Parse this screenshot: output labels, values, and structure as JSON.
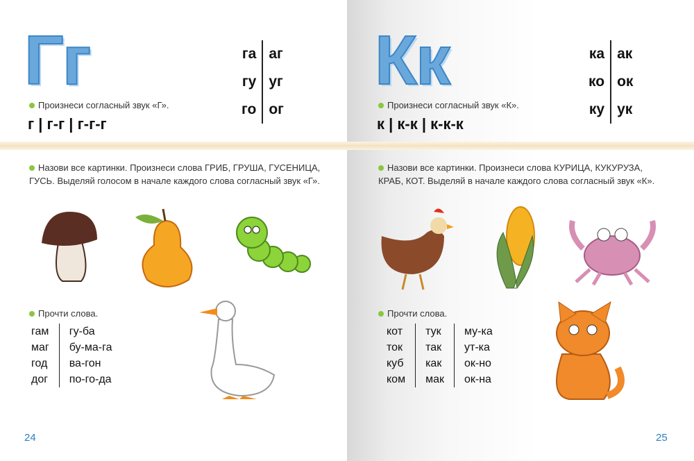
{
  "left": {
    "letter": "Гг",
    "syllables": [
      [
        "га",
        "аг"
      ],
      [
        "гу",
        "уг"
      ],
      [
        "го",
        "ог"
      ]
    ],
    "instruction_sound": "Произнеси согласный звук «Г».",
    "sound_pattern": "г | г-г | г-г-г",
    "instruction_name": "Назови все картинки. Произнеси слова ГРИБ, ГРУША, ГУСЕНИЦА, ГУСЬ. Выделяй голосом в начале каждого слова согласный звук «Г».",
    "instruction_read": "Прочти слова.",
    "words": [
      [
        "гам",
        "гу-ба"
      ],
      [
        "маг",
        "бу-ма-га"
      ],
      [
        "год",
        "ва-гон"
      ],
      [
        "дог",
        "по-го-да"
      ]
    ],
    "pictures": [
      "mushroom",
      "pear",
      "caterpillar",
      "goose"
    ],
    "page_number": "24"
  },
  "right": {
    "letter": "Кк",
    "syllables": [
      [
        "ка",
        "ак"
      ],
      [
        "ко",
        "ок"
      ],
      [
        "ку",
        "ук"
      ]
    ],
    "instruction_sound": "Произнеси согласный звук «К».",
    "sound_pattern": "к | к-к | к-к-к",
    "instruction_name": "Назови все картинки. Произнеси слова КУРИЦА, КУКУРУЗА, КРАБ, КОТ. Выделяй в начале каждого слова согласный звук «К».",
    "instruction_read": "Прочти слова.",
    "words": [
      [
        "кот",
        "тук",
        "му-ка"
      ],
      [
        "ток",
        "так",
        "ут-ка"
      ],
      [
        "куб",
        "как",
        "ок-но"
      ],
      [
        "ком",
        "мак",
        "ок-на"
      ]
    ],
    "pictures": [
      "hen",
      "corn",
      "crab",
      "cat"
    ],
    "page_number": "25"
  },
  "colors": {
    "letter": "#6aa8dc",
    "bullet": "#8cc63f",
    "page_number": "#2f7fc0"
  }
}
